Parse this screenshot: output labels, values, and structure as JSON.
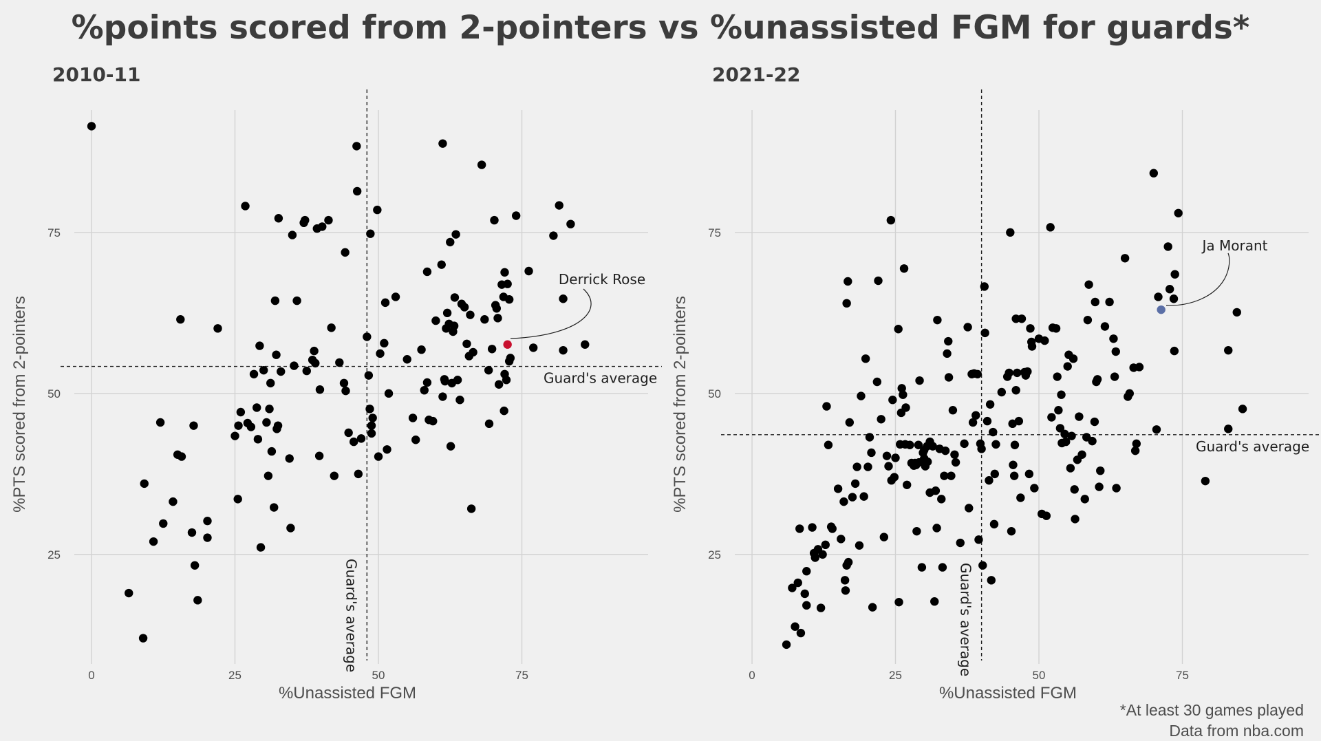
{
  "title": "%points scored from 2-pointers vs %unassisted FGM for guards*",
  "footnote": {
    "line1": "*At least 30 games played",
    "line2": "Data from nba.com"
  },
  "colors": {
    "background": "#f0f0f0",
    "point": "#000000",
    "rose": "#c8102e",
    "morant": "#5b6fa6",
    "grid": "#d2d2d2"
  },
  "chart_data": [
    {
      "type": "scatter",
      "title": "2010-11",
      "xlabel": "%Unassisted FGM",
      "ylabel": "%PTS scored from 2-pointers",
      "xlim": [
        -3,
        97
      ],
      "ylim": [
        8,
        94
      ],
      "xticks": [
        0,
        25,
        50,
        75
      ],
      "yticks": [
        25,
        50,
        75
      ],
      "avg_x": 48,
      "avg_y": 54.2,
      "avg_x_label": "Guard's average",
      "avg_y_label": "Guard's average",
      "highlight": {
        "name": "Derrick Rose",
        "x": 72.5,
        "y": 57.6,
        "color": "#c8102e"
      },
      "points": [
        [
          0,
          91.5
        ],
        [
          6.5,
          19
        ],
        [
          9,
          12
        ],
        [
          9.2,
          36
        ],
        [
          10.8,
          27
        ],
        [
          12,
          45.5
        ],
        [
          12.5,
          29.8
        ],
        [
          14.2,
          33.2
        ],
        [
          15,
          40.5
        ],
        [
          15.5,
          61.5
        ],
        [
          15.7,
          40.2
        ],
        [
          17.5,
          28.4
        ],
        [
          17.8,
          45
        ],
        [
          18,
          23.3
        ],
        [
          18.5,
          17.9
        ],
        [
          20.2,
          30.2
        ],
        [
          20.2,
          27.6
        ],
        [
          22,
          60.1
        ],
        [
          25,
          43.4
        ],
        [
          25.5,
          33.6
        ],
        [
          25.6,
          45
        ],
        [
          26,
          47.1
        ],
        [
          26.8,
          79.1
        ],
        [
          27.2,
          45.4
        ],
        [
          27.8,
          44.8
        ],
        [
          28.3,
          53
        ],
        [
          28.8,
          47.8
        ],
        [
          29,
          42.9
        ],
        [
          29.3,
          57.4
        ],
        [
          29.5,
          26.1
        ],
        [
          30,
          53.6
        ],
        [
          30.5,
          45.5
        ],
        [
          30.8,
          37.2
        ],
        [
          31,
          47.6
        ],
        [
          31.2,
          51.6
        ],
        [
          31.4,
          41
        ],
        [
          31.8,
          32.3
        ],
        [
          32,
          64.4
        ],
        [
          32.2,
          56
        ],
        [
          32.3,
          44.5
        ],
        [
          32.5,
          45
        ],
        [
          32.6,
          77.2
        ],
        [
          33,
          53.4
        ],
        [
          34.5,
          39.9
        ],
        [
          34.7,
          29.1
        ],
        [
          35,
          74.6
        ],
        [
          35.3,
          54.3
        ],
        [
          35.8,
          64.4
        ],
        [
          37,
          76.5
        ],
        [
          37.2,
          76.9
        ],
        [
          37.5,
          53.5
        ],
        [
          38.5,
          55.2
        ],
        [
          38.8,
          56.6
        ],
        [
          39,
          54.7
        ],
        [
          39.3,
          75.6
        ],
        [
          39.7,
          40.3
        ],
        [
          39.8,
          50.6
        ],
        [
          40.2,
          75.9
        ],
        [
          41.3,
          76.9
        ],
        [
          41.8,
          60.2
        ],
        [
          42.3,
          37.2
        ],
        [
          43.2,
          54.8
        ],
        [
          44,
          51.6
        ],
        [
          44.2,
          71.9
        ],
        [
          44.3,
          50.4
        ],
        [
          44.8,
          43.9
        ],
        [
          45.7,
          42.5
        ],
        [
          46.2,
          88.4
        ],
        [
          46.3,
          81.4
        ],
        [
          46.5,
          37.5
        ],
        [
          47,
          43
        ],
        [
          48,
          58.8
        ],
        [
          48.3,
          52.8
        ],
        [
          48.5,
          47.6
        ],
        [
          48.6,
          74.8
        ],
        [
          48.8,
          43.8
        ],
        [
          48.8,
          45
        ],
        [
          49,
          46.2
        ],
        [
          49.8,
          78.5
        ],
        [
          50,
          40.2
        ],
        [
          50.3,
          56.2
        ],
        [
          51,
          57.8
        ],
        [
          51.2,
          64.1
        ],
        [
          51.5,
          41.3
        ],
        [
          51.8,
          50
        ],
        [
          53,
          65
        ],
        [
          55,
          55.3
        ],
        [
          56,
          46.2
        ],
        [
          56.5,
          42.8
        ],
        [
          57.5,
          56.8
        ],
        [
          58,
          50.5
        ],
        [
          58.5,
          51.7
        ],
        [
          58.5,
          68.9
        ],
        [
          58.8,
          45.9
        ],
        [
          59.5,
          45.7
        ],
        [
          60,
          61.3
        ],
        [
          61,
          70
        ],
        [
          61.2,
          88.8
        ],
        [
          61.2,
          49.5
        ],
        [
          61.5,
          52.2
        ],
        [
          61.6,
          51.9
        ],
        [
          61.8,
          60.1
        ],
        [
          62,
          62.5
        ],
        [
          62.3,
          60.8
        ],
        [
          62.5,
          73.5
        ],
        [
          62.6,
          41.8
        ],
        [
          62.8,
          51.6
        ],
        [
          63,
          59.6
        ],
        [
          63.2,
          60.5
        ],
        [
          63.3,
          64.9
        ],
        [
          63.5,
          74.7
        ],
        [
          63.8,
          52.1
        ],
        [
          64.2,
          49
        ],
        [
          64.5,
          63.9
        ],
        [
          65,
          63.4
        ],
        [
          65.4,
          57.7
        ],
        [
          65.8,
          55.8
        ],
        [
          66,
          62.2
        ],
        [
          66.2,
          32.1
        ],
        [
          66.5,
          56.4
        ],
        [
          68,
          85.5
        ],
        [
          68.5,
          61.5
        ],
        [
          69.2,
          53.6
        ],
        [
          69.3,
          45.3
        ],
        [
          69.8,
          56.9
        ],
        [
          70.2,
          76.9
        ],
        [
          70.4,
          63.7
        ],
        [
          70.6,
          63.2
        ],
        [
          70.8,
          61.7
        ],
        [
          71,
          51.4
        ],
        [
          71.5,
          66.9
        ],
        [
          71.8,
          65
        ],
        [
          71.9,
          47.3
        ],
        [
          72,
          53
        ],
        [
          72,
          68.8
        ],
        [
          72.3,
          52.1
        ],
        [
          72.5,
          67
        ],
        [
          72.8,
          64.6
        ],
        [
          72.8,
          55
        ],
        [
          73,
          55.5
        ],
        [
          74,
          77.6
        ],
        [
          76.2,
          69
        ],
        [
          77,
          57.1
        ],
        [
          80.5,
          74.5
        ],
        [
          81.5,
          79.2
        ],
        [
          82.2,
          64.7
        ],
        [
          82.2,
          56.7
        ],
        [
          83.5,
          76.3
        ],
        [
          86,
          57.6
        ]
      ]
    },
    {
      "type": "scatter",
      "title": "2021-22",
      "xlabel": "%Unassisted FGM",
      "ylabel": "%PTS scored from 2-pointers",
      "xlim": [
        -3,
        97
      ],
      "ylim": [
        8,
        94
      ],
      "xticks": [
        0,
        25,
        50,
        75
      ],
      "yticks": [
        25,
        50,
        75
      ],
      "avg_x": 40,
      "avg_y": 43.6,
      "avg_x_label": "Guard's average",
      "avg_y_label": "Guard's average",
      "highlight": {
        "name": "Ja Morant",
        "x": 71.3,
        "y": 63,
        "color": "#5b6fa6"
      },
      "points": [
        [
          6,
          11
        ],
        [
          7,
          19.8
        ],
        [
          7.5,
          13.8
        ],
        [
          8,
          20.6
        ],
        [
          8.3,
          29
        ],
        [
          8.5,
          12.8
        ],
        [
          9.2,
          18.9
        ],
        [
          9.5,
          17.1
        ],
        [
          9.5,
          22.4
        ],
        [
          10.5,
          29.2
        ],
        [
          10.8,
          25.2
        ],
        [
          11,
          24.5
        ],
        [
          11.5,
          25.8
        ],
        [
          12,
          16.7
        ],
        [
          12.3,
          25
        ],
        [
          12.8,
          26.5
        ],
        [
          13,
          48
        ],
        [
          13.3,
          42
        ],
        [
          13.8,
          29.3
        ],
        [
          14,
          29
        ],
        [
          15,
          35.2
        ],
        [
          15.5,
          27.4
        ],
        [
          16,
          33.2
        ],
        [
          16.2,
          21
        ],
        [
          16.3,
          19.4
        ],
        [
          16.5,
          23.3
        ],
        [
          16.5,
          64
        ],
        [
          16.7,
          67.4
        ],
        [
          16.8,
          23.8
        ],
        [
          17,
          45.5
        ],
        [
          17.5,
          33.9
        ],
        [
          18,
          36
        ],
        [
          18.3,
          38.6
        ],
        [
          18.7,
          26.4
        ],
        [
          19,
          49.6
        ],
        [
          19.5,
          34
        ],
        [
          19.8,
          55.4
        ],
        [
          20.2,
          38.6
        ],
        [
          20.5,
          43.2
        ],
        [
          20.8,
          40.8
        ],
        [
          21,
          16.8
        ],
        [
          21.8,
          51.8
        ],
        [
          22,
          67.5
        ],
        [
          22.5,
          46
        ],
        [
          23,
          27.7
        ],
        [
          23.5,
          40.3
        ],
        [
          23.8,
          38.7
        ],
        [
          24.2,
          76.9
        ],
        [
          24.3,
          36.5
        ],
        [
          24.5,
          49
        ],
        [
          24.8,
          37
        ],
        [
          25,
          40
        ],
        [
          25.5,
          60
        ],
        [
          25.6,
          17.6
        ],
        [
          25.8,
          42.1
        ],
        [
          26,
          47
        ],
        [
          26.1,
          50.8
        ],
        [
          26.3,
          49.8
        ],
        [
          26.5,
          69.4
        ],
        [
          26.7,
          42.1
        ],
        [
          26.8,
          47.8
        ],
        [
          27,
          35.8
        ],
        [
          27.5,
          42
        ],
        [
          27.8,
          39.2
        ],
        [
          28.2,
          38.8
        ],
        [
          28.4,
          39.2
        ],
        [
          28.6,
          38.9
        ],
        [
          28.7,
          28.6
        ],
        [
          29,
          42
        ],
        [
          29.1,
          39.3
        ],
        [
          29.2,
          52
        ],
        [
          29.6,
          23
        ],
        [
          29.8,
          40.8
        ],
        [
          30,
          41.2
        ],
        [
          30,
          39.9
        ],
        [
          30.2,
          38.7
        ],
        [
          30.5,
          41.8
        ],
        [
          30.6,
          39.4
        ],
        [
          31,
          34.6
        ],
        [
          31,
          42.5
        ],
        [
          31.5,
          41.8
        ],
        [
          31.8,
          17.7
        ],
        [
          32,
          34.9
        ],
        [
          32.2,
          29.1
        ],
        [
          32.3,
          61.4
        ],
        [
          32.7,
          41.4
        ],
        [
          33,
          33.6
        ],
        [
          33.2,
          23
        ],
        [
          33.5,
          37.2
        ],
        [
          33.7,
          41.1
        ],
        [
          34,
          56.2
        ],
        [
          34.2,
          58.1
        ],
        [
          34.3,
          52.5
        ],
        [
          34.7,
          37.2
        ],
        [
          35,
          47.4
        ],
        [
          35.3,
          40.5
        ],
        [
          35.5,
          39.3
        ],
        [
          36.3,
          26.8
        ],
        [
          37,
          42.2
        ],
        [
          37.6,
          60.3
        ],
        [
          37.8,
          32.2
        ],
        [
          38.3,
          53
        ],
        [
          38.5,
          45.5
        ],
        [
          38.7,
          53.1
        ],
        [
          39,
          46.6
        ],
        [
          39.3,
          53
        ],
        [
          39.5,
          27.3
        ],
        [
          39.8,
          42.2
        ],
        [
          40,
          41.4
        ],
        [
          40.2,
          23.3
        ],
        [
          40.5,
          66.6
        ],
        [
          40.6,
          59.4
        ],
        [
          41,
          45.7
        ],
        [
          41.3,
          36.5
        ],
        [
          41.5,
          48.3
        ],
        [
          41.7,
          21
        ],
        [
          42,
          44
        ],
        [
          42.2,
          29.7
        ],
        [
          42.3,
          37.5
        ],
        [
          42.5,
          42.1
        ],
        [
          43.5,
          50.2
        ],
        [
          44.5,
          52.6
        ],
        [
          44.8,
          53.2
        ],
        [
          45,
          75
        ],
        [
          45.2,
          28.6
        ],
        [
          45.4,
          45.3
        ],
        [
          45.5,
          38.9
        ],
        [
          45.7,
          37.2
        ],
        [
          45.8,
          42
        ],
        [
          46,
          61.6
        ],
        [
          46,
          50.5
        ],
        [
          46.2,
          53.2
        ],
        [
          46.5,
          45.7
        ],
        [
          46.8,
          33.8
        ],
        [
          47,
          61.6
        ],
        [
          47.5,
          53.3
        ],
        [
          47.7,
          52.8
        ],
        [
          48,
          53.4
        ],
        [
          48.3,
          37.5
        ],
        [
          48.5,
          60.1
        ],
        [
          48.7,
          58
        ],
        [
          48.8,
          57.3
        ],
        [
          49.2,
          35.3
        ],
        [
          50,
          58.5
        ],
        [
          50.5,
          31.3
        ],
        [
          51,
          58.2
        ],
        [
          51.3,
          31
        ],
        [
          52,
          75.8
        ],
        [
          52.2,
          46.3
        ],
        [
          52.4,
          60.2
        ],
        [
          53,
          60.1
        ],
        [
          53.2,
          52.6
        ],
        [
          53.4,
          47.4
        ],
        [
          53.7,
          44.6
        ],
        [
          53.9,
          49.8
        ],
        [
          54,
          42.3
        ],
        [
          54.5,
          43.7
        ],
        [
          54.7,
          42.5
        ],
        [
          55,
          54.2
        ],
        [
          55.2,
          56
        ],
        [
          55.5,
          38.4
        ],
        [
          55.7,
          43.4
        ],
        [
          56,
          55.4
        ],
        [
          56.2,
          35.1
        ],
        [
          56.3,
          30.5
        ],
        [
          56.7,
          39.7
        ],
        [
          57,
          46.4
        ],
        [
          57.5,
          40.5
        ],
        [
          58,
          33.6
        ],
        [
          58.3,
          43.2
        ],
        [
          58.5,
          61.4
        ],
        [
          58.7,
          66.9
        ],
        [
          59.3,
          42.6
        ],
        [
          59.7,
          45.6
        ],
        [
          59.8,
          64.2
        ],
        [
          60,
          51.8
        ],
        [
          60.2,
          52.2
        ],
        [
          60.5,
          35.5
        ],
        [
          60.7,
          38
        ],
        [
          61.5,
          60.4
        ],
        [
          62.3,
          64.2
        ],
        [
          63,
          58.5
        ],
        [
          63.2,
          52.6
        ],
        [
          63.4,
          56.5
        ],
        [
          63.5,
          35.3
        ],
        [
          65,
          71
        ],
        [
          65.5,
          49.5
        ],
        [
          65.8,
          50
        ],
        [
          66.5,
          54
        ],
        [
          66.8,
          41.1
        ],
        [
          67,
          42.2
        ],
        [
          67.5,
          54.1
        ],
        [
          70,
          84.2
        ],
        [
          70.5,
          44.4
        ],
        [
          70.8,
          65
        ],
        [
          72.5,
          72.8
        ],
        [
          72.8,
          66.2
        ],
        [
          73.5,
          64.7
        ],
        [
          73.6,
          56.6
        ],
        [
          73.7,
          68.5
        ],
        [
          74.3,
          78
        ],
        [
          79,
          36.4
        ],
        [
          83,
          56.7
        ],
        [
          83,
          44.5
        ],
        [
          84.5,
          62.6
        ],
        [
          85.5,
          47.6
        ]
      ]
    }
  ]
}
